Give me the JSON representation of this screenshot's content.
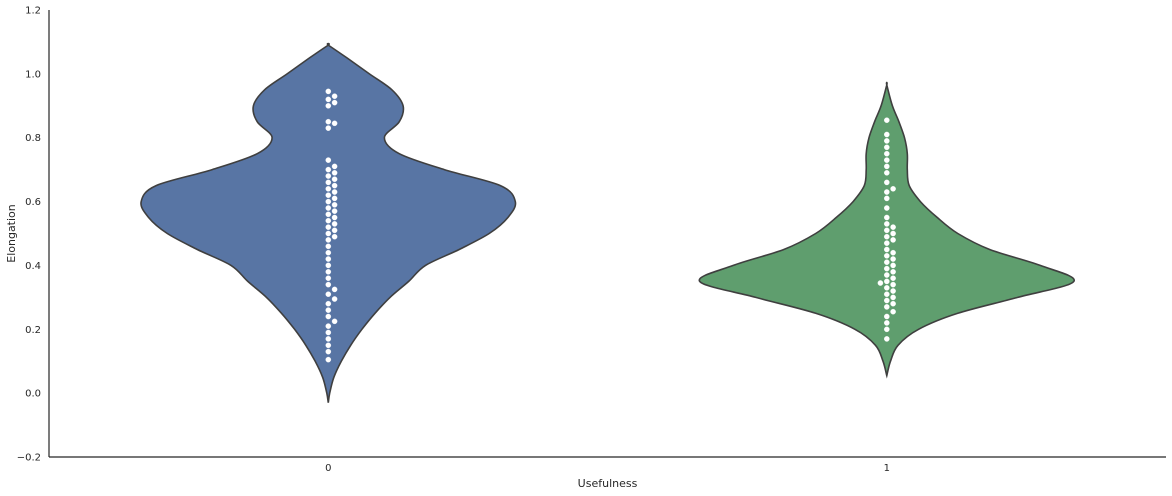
{
  "chart_data": {
    "type": "violin",
    "xlabel": "Usefulness",
    "ylabel": "Elongation",
    "ylim": [
      -0.2,
      1.2
    ],
    "yticks": [
      "−0.2",
      "0.0",
      "0.2",
      "0.4",
      "0.6",
      "0.8",
      "1.0",
      "1.2"
    ],
    "categories": [
      "0",
      "1"
    ],
    "grid": false,
    "colors": {
      "violins": [
        "#5875a4",
        "#5f9e6e"
      ],
      "outline": "#3f3f3f",
      "points": "#ffffff",
      "axis": "#262626"
    },
    "violins": [
      {
        "category": "0",
        "profile": [
          [
            -0.03,
            0.0
          ],
          [
            0.0,
            0.008
          ],
          [
            0.05,
            0.03
          ],
          [
            0.1,
            0.07
          ],
          [
            0.15,
            0.12
          ],
          [
            0.2,
            0.18
          ],
          [
            0.25,
            0.25
          ],
          [
            0.3,
            0.33
          ],
          [
            0.35,
            0.43
          ],
          [
            0.4,
            0.52
          ],
          [
            0.45,
            0.7
          ],
          [
            0.5,
            0.86
          ],
          [
            0.55,
            0.96
          ],
          [
            0.6,
            1.0
          ],
          [
            0.65,
            0.92
          ],
          [
            0.7,
            0.62
          ],
          [
            0.75,
            0.38
          ],
          [
            0.8,
            0.3
          ],
          [
            0.85,
            0.38
          ],
          [
            0.9,
            0.4
          ],
          [
            0.95,
            0.34
          ],
          [
            1.0,
            0.22
          ],
          [
            1.05,
            0.1
          ],
          [
            1.09,
            0.0
          ]
        ],
        "points": [
          0.105,
          0.13,
          0.15,
          0.17,
          0.19,
          0.21,
          0.225,
          0.24,
          0.26,
          0.28,
          0.295,
          0.31,
          0.325,
          0.34,
          0.36,
          0.38,
          0.4,
          0.42,
          0.44,
          0.46,
          0.48,
          0.49,
          0.5,
          0.51,
          0.52,
          0.53,
          0.54,
          0.55,
          0.56,
          0.57,
          0.58,
          0.59,
          0.6,
          0.61,
          0.62,
          0.63,
          0.64,
          0.65,
          0.66,
          0.67,
          0.68,
          0.69,
          0.7,
          0.71,
          0.73,
          0.83,
          0.845,
          0.85,
          0.9,
          0.91,
          0.92,
          0.93,
          0.945
        ]
      },
      {
        "category": "1",
        "profile": [
          [
            0.055,
            0.0
          ],
          [
            0.1,
            0.02
          ],
          [
            0.15,
            0.06
          ],
          [
            0.2,
            0.17
          ],
          [
            0.25,
            0.38
          ],
          [
            0.3,
            0.7
          ],
          [
            0.35,
            1.0
          ],
          [
            0.4,
            0.82
          ],
          [
            0.45,
            0.55
          ],
          [
            0.5,
            0.38
          ],
          [
            0.55,
            0.27
          ],
          [
            0.6,
            0.18
          ],
          [
            0.65,
            0.12
          ],
          [
            0.7,
            0.11
          ],
          [
            0.75,
            0.11
          ],
          [
            0.8,
            0.095
          ],
          [
            0.85,
            0.065
          ],
          [
            0.9,
            0.03
          ],
          [
            0.965,
            0.0
          ]
        ],
        "points": [
          0.17,
          0.2,
          0.22,
          0.24,
          0.255,
          0.27,
          0.28,
          0.29,
          0.3,
          0.31,
          0.32,
          0.33,
          0.34,
          0.345,
          0.35,
          0.36,
          0.37,
          0.38,
          0.39,
          0.4,
          0.41,
          0.42,
          0.43,
          0.44,
          0.45,
          0.47,
          0.48,
          0.49,
          0.5,
          0.51,
          0.52,
          0.53,
          0.55,
          0.58,
          0.61,
          0.63,
          0.64,
          0.66,
          0.69,
          0.71,
          0.73,
          0.75,
          0.77,
          0.79,
          0.81,
          0.855
        ]
      }
    ]
  }
}
